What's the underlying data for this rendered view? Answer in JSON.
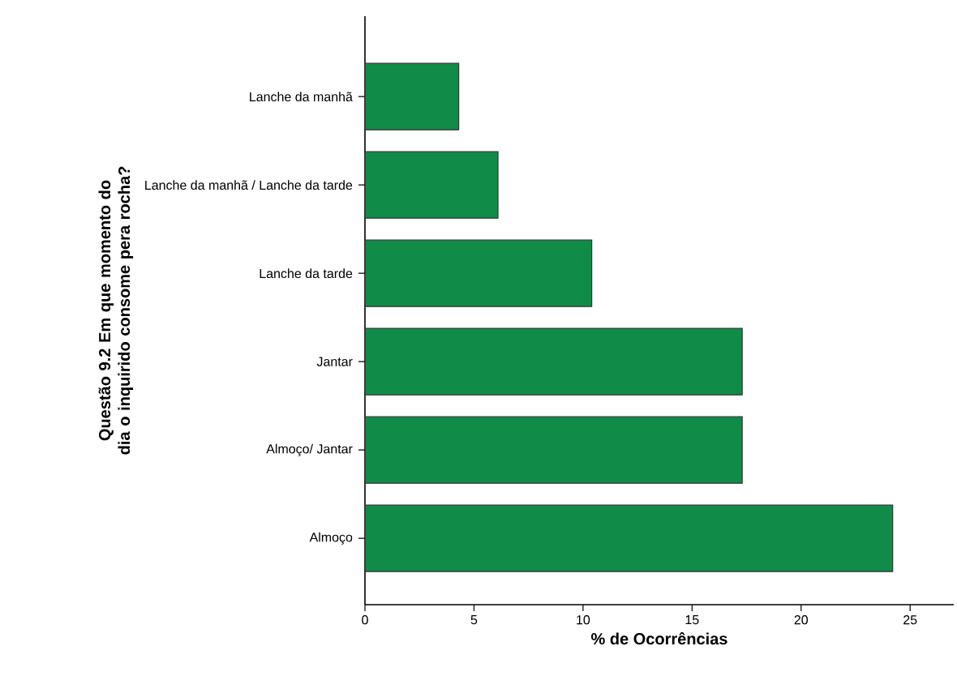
{
  "chart_data": {
    "type": "bar",
    "orientation": "horizontal",
    "xlabel": "% de Ocorrências",
    "ylabel": "Questão 9.2 Em que momento do dia o inquirido consome pera rocha?",
    "categories": [
      "Lanche da manhã",
      "Lanche da manhã / Lanche da tarde",
      "Lanche da tarde",
      "Jantar",
      "Almoço/ Jantar",
      "Almoço"
    ],
    "values": [
      4.3,
      6.1,
      10.4,
      17.3,
      17.3,
      24.2
    ],
    "color": "#108c48",
    "xlim": [
      0,
      27
    ],
    "xticks": [
      0,
      5,
      10,
      15,
      20,
      25
    ],
    "grid": false
  }
}
